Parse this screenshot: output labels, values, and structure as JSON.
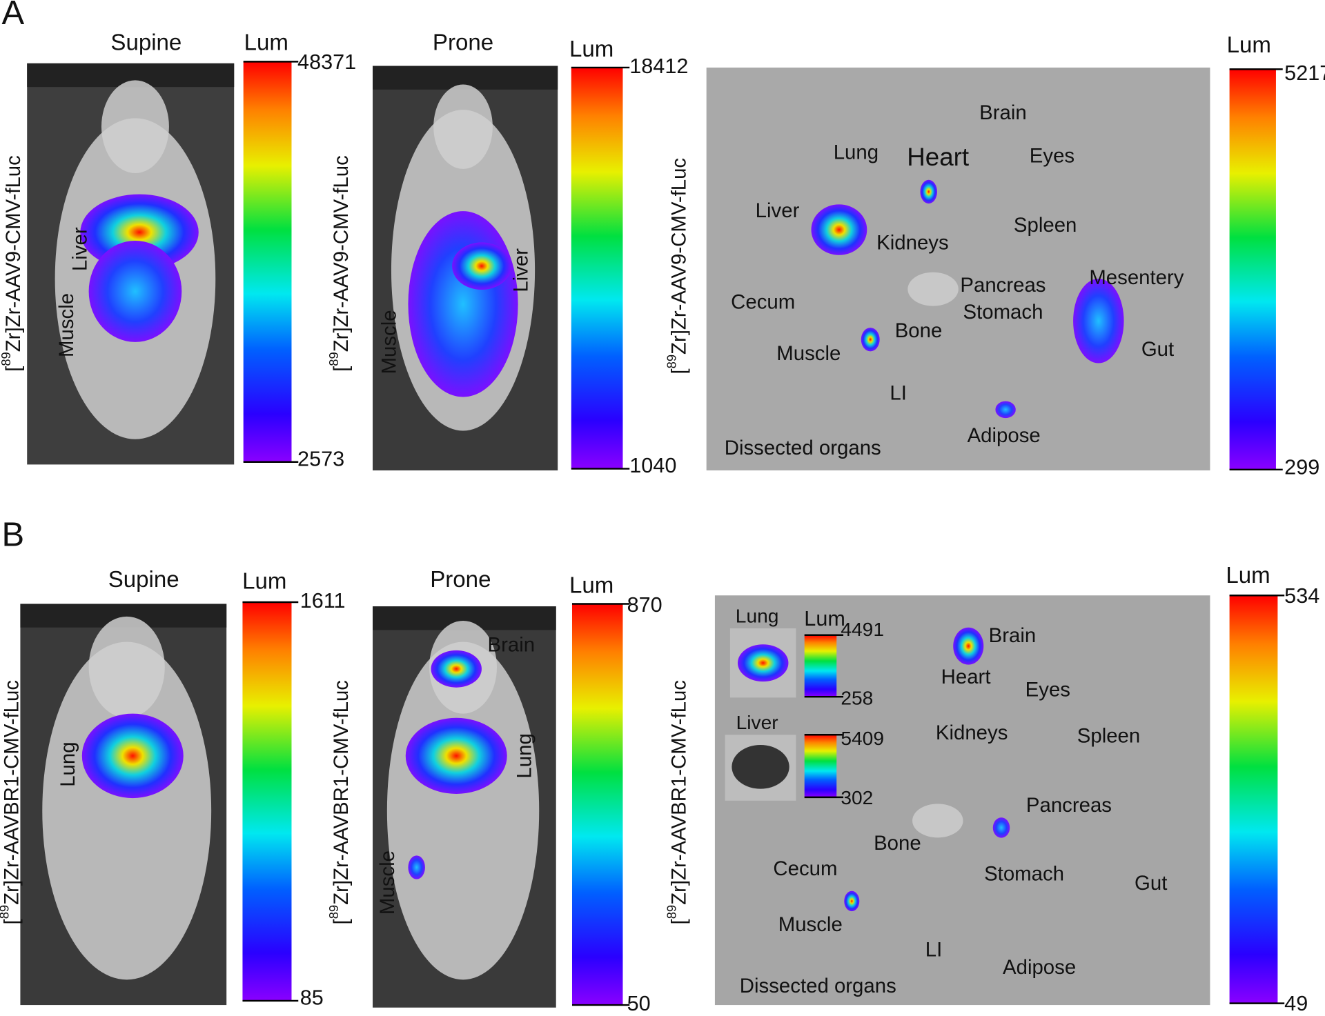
{
  "panels": [
    {
      "letter": "A",
      "images": [
        {
          "view": "Supine",
          "probe": {
            "pre": "[",
            "sup": "89",
            "post": "Zr]Zr-AAV9-CMV-fLuc"
          },
          "colorbar": {
            "title": "Lum",
            "max": 48371,
            "min": 2573
          },
          "labels": [
            "Liver",
            "Muscle"
          ]
        },
        {
          "view": "Prone",
          "probe": {
            "pre": "[",
            "sup": "89",
            "post": "Zr]Zr-AAV9-CMV-fLuc"
          },
          "colorbar": {
            "title": "Lum",
            "max": 18412,
            "min": 1040
          },
          "labels": [
            "Liver",
            "Muscle"
          ]
        },
        {
          "probe": {
            "pre": "[",
            "sup": "89",
            "post": "Zr]Zr-AAV9-CMV-fLuc"
          },
          "colorbar": {
            "title": "Lum",
            "max": 5217,
            "min": 299
          },
          "labels": [
            "Brain",
            "Heart",
            "Eyes",
            "Lung",
            "Liver",
            "Spleen",
            "Kidneys",
            "Pancreas",
            "Mesentery",
            "Cecum",
            "Stomach",
            "Bone",
            "Muscle",
            "Gut",
            "LI",
            "Adipose",
            "Dissected organs"
          ]
        }
      ]
    },
    {
      "letter": "B",
      "images": [
        {
          "view": "Supine",
          "probe": {
            "pre": "[",
            "sup": "89",
            "post": "Zr]Zr-AAVBR1-CMV-fLuc"
          },
          "colorbar": {
            "title": "Lum",
            "max": 1611,
            "min": 85
          },
          "labels": [
            "Lung"
          ]
        },
        {
          "view": "Prone",
          "probe": {
            "pre": "[",
            "sup": "89",
            "post": "Zr]Zr-AAVBR1-CMV-fLuc"
          },
          "colorbar": {
            "title": "Lum",
            "max": 870,
            "min": 50
          },
          "labels": [
            "Brain",
            "Lung",
            "Muscle"
          ]
        },
        {
          "probe": {
            "pre": "[",
            "sup": "89",
            "post": "Zr]Zr-AAVBR1-CMV-fLuc"
          },
          "colorbar": {
            "title": "Lum",
            "max": 534,
            "min": 49
          },
          "insets": [
            {
              "label": "Lung",
              "colorbar": {
                "title": "Lum",
                "max": 4491,
                "min": 258
              }
            },
            {
              "label": "Liver",
              "colorbar": {
                "max": 5409,
                "min": 302
              }
            }
          ],
          "labels": [
            "Brain",
            "Heart",
            "Eyes",
            "Kidneys",
            "Spleen",
            "Pancreas",
            "Bone",
            "Cecum",
            "Stomach",
            "Gut",
            "Muscle",
            "LI",
            "Adipose",
            "Dissected organs"
          ]
        }
      ]
    }
  ]
}
